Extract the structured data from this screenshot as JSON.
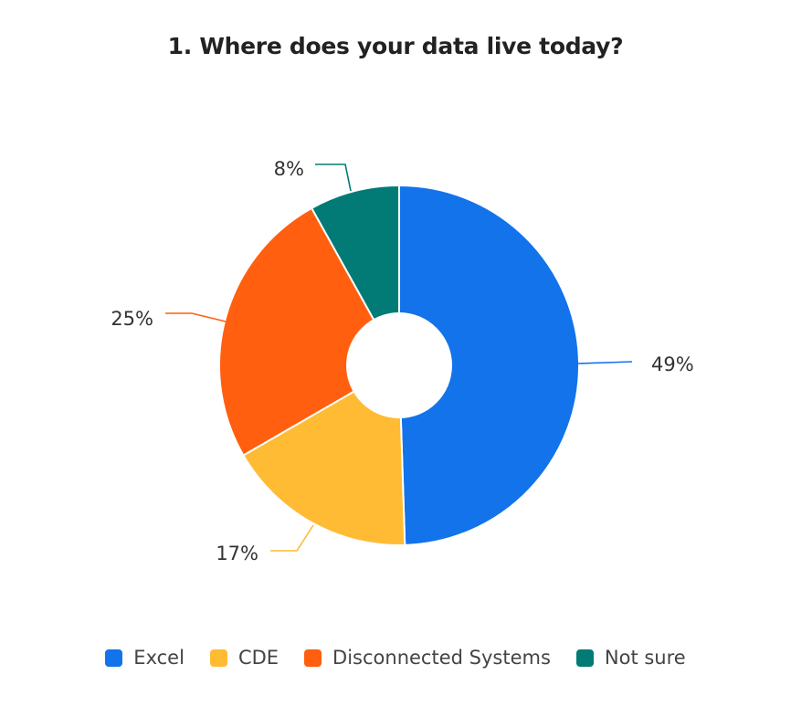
{
  "chart_data": {
    "type": "pie",
    "donut": true,
    "title": "1. Where does your data live today?",
    "categories": [
      "Excel",
      "CDE",
      "Disconnected Systems",
      "Not sure"
    ],
    "values": [
      49,
      17,
      25,
      8
    ],
    "labels": [
      "49%",
      "17%",
      "25%",
      "8%"
    ],
    "colors": [
      "#1273EA",
      "#FFBB33",
      "#FF5F0F",
      "#027B76"
    ],
    "legend_position": "bottom"
  }
}
